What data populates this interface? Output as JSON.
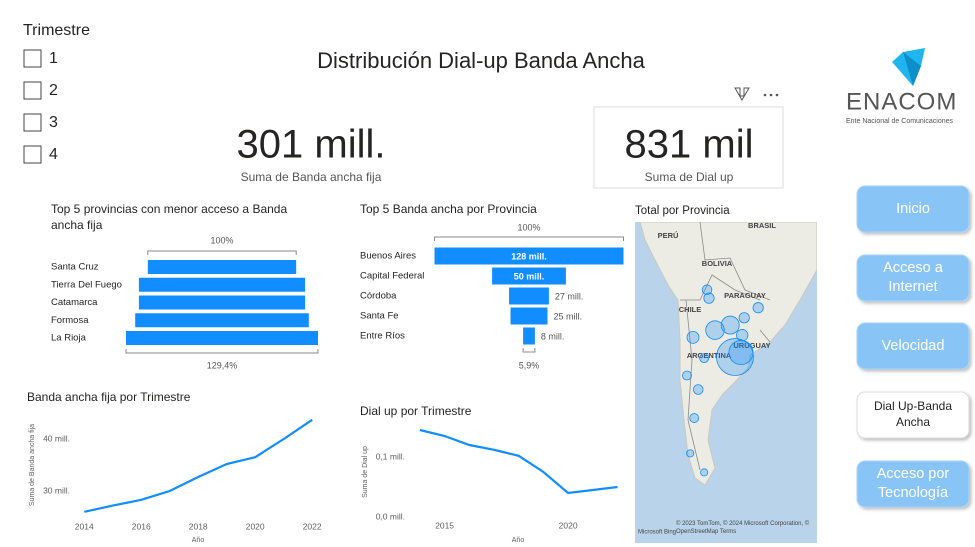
{
  "title": "Distribución Dial-up Banda Ancha",
  "slicer": {
    "title": "Trimestre",
    "items": [
      "1",
      "2",
      "3",
      "4"
    ]
  },
  "cards": [
    {
      "value": "301 mill.",
      "caption": "Suma de Banda ancha fija"
    },
    {
      "value": "831 mil",
      "caption": "Suma de Dial up"
    }
  ],
  "logo": {
    "name": "ENACOM",
    "tagline": "Ente Nacional de Comunicaciones"
  },
  "nav": [
    {
      "label": "Inicio",
      "active": false
    },
    {
      "label": "Acceso a Internet",
      "active": false
    },
    {
      "label": "Velocidad",
      "active": false
    },
    {
      "label": "Dial Up-Banda Ancha",
      "active": true
    },
    {
      "label": "Acceso por Tecnología",
      "active": false
    }
  ],
  "chart_data": [
    {
      "type": "funnel",
      "title": "Top 5 provincias con menor acceso a Banda ancha fija",
      "color": "#118dff",
      "categories": [
        "Santa Cruz",
        "Tierra Del Fuego",
        "Catamarca",
        "Formosa",
        "La Rioja"
      ],
      "values": [
        100,
        112,
        112,
        117,
        129.4
      ],
      "top_label": {
        "value": 100,
        "label": "100%"
      },
      "bottom_label": {
        "value": 129.4,
        "label": "129,4%"
      }
    },
    {
      "type": "funnel",
      "title": "Top 5 Banda ancha por Provincia",
      "color": "#118dff",
      "categories": [
        "Buenos Aires",
        "Capital Federal",
        "Córdoba",
        "Santa Fe",
        "Entre Ríos"
      ],
      "values": [
        128,
        50,
        27,
        25,
        8
      ],
      "value_labels": [
        "128 mill.",
        "50 mill.",
        "27 mill.",
        "25 mill.",
        "8 mill."
      ],
      "top_label": {
        "value": 100,
        "label": "100%"
      },
      "bottom_label": {
        "value": 5.9,
        "label": "5,9%"
      }
    },
    {
      "type": "line",
      "title": "Banda ancha fija por Trimestre",
      "color": "#118dff",
      "x": [
        2014,
        2015,
        2016,
        2017,
        2018,
        2019,
        2020,
        2021,
        2022
      ],
      "values": [
        26,
        27.2,
        28.3,
        30,
        32.7,
        35.2,
        36.5,
        40,
        43.7
      ],
      "xlim": [
        2013.85,
        2022.1
      ],
      "ylim": [
        25,
        45
      ],
      "xticks": [
        2014,
        2016,
        2018,
        2020,
        2022
      ],
      "yticks": [
        {
          "value": 30,
          "label": "30 mill."
        },
        {
          "value": 40,
          "label": "40 mill."
        }
      ],
      "xlabel": "Año",
      "ylabel": "Suma de Banda ancha fija",
      "grid": false
    },
    {
      "type": "line",
      "title": "Dial up por Trimestre",
      "color": "#118dff",
      "x": [
        2014,
        2015,
        2016,
        2017,
        2018,
        2019,
        2020,
        2021,
        2022
      ],
      "values": [
        0.145,
        0.135,
        0.12,
        0.112,
        0.102,
        0.075,
        0.04,
        0.045,
        0.05
      ],
      "xlim": [
        2013.6,
        2022.1
      ],
      "ylim": [
        0,
        0.15
      ],
      "xticks": [
        2015,
        2020
      ],
      "yticks": [
        {
          "value": 0,
          "label": "0,0 mill."
        },
        {
          "value": 0.1,
          "label": "0,1 mill."
        }
      ],
      "xlabel": "Año",
      "ylabel": "Suma de Dial up",
      "grid": false
    },
    {
      "type": "map",
      "title": "Total por Provincia",
      "color": "#118dff",
      "labels": [
        "PERÚ",
        "BRASIL",
        "BOLIVIA",
        "PARAGUAY",
        "CHILE",
        "ARGENTINA",
        "URUGUAY"
      ],
      "attribution": "© 2023 TomTom, © 2024 Microsoft Corporation, © OpenStreetMap Terms",
      "provider": "Microsoft Bing",
      "lonlim": [
        -83.4,
        -37.9
      ],
      "latlim": [
        -10.5,
        -67.8
      ],
      "points": [
        {
          "lon": -58.4,
          "lat": -34.6,
          "size": 128
        },
        {
          "lon": -56.9,
          "lat": -33.8,
          "size": 50
        },
        {
          "lon": -63.4,
          "lat": -29.8,
          "size": 27
        },
        {
          "lon": -59.6,
          "lat": -28.9,
          "size": 25
        },
        {
          "lon": -56.6,
          "lat": -30.7,
          "size": 8
        },
        {
          "lon": -68.9,
          "lat": -31.1,
          "size": 9
        },
        {
          "lon": -64.9,
          "lat": -24.1,
          "size": 6
        },
        {
          "lon": -65.4,
          "lat": -22.6,
          "size": 5
        },
        {
          "lon": -52.6,
          "lat": -25.8,
          "size": 6
        },
        {
          "lon": -56.1,
          "lat": -27.6,
          "size": 6
        },
        {
          "lon": -70.4,
          "lat": -37.9,
          "size": 4
        },
        {
          "lon": -67.6,
          "lat": -40.4,
          "size": 5
        },
        {
          "lon": -68.6,
          "lat": -45.5,
          "size": 4
        },
        {
          "lon": -66.1,
          "lat": -34.8,
          "size": 4
        },
        {
          "lon": -69.6,
          "lat": -51.8,
          "size": 2
        },
        {
          "lon": -66.1,
          "lat": -55.2,
          "size": 2
        }
      ]
    }
  ]
}
